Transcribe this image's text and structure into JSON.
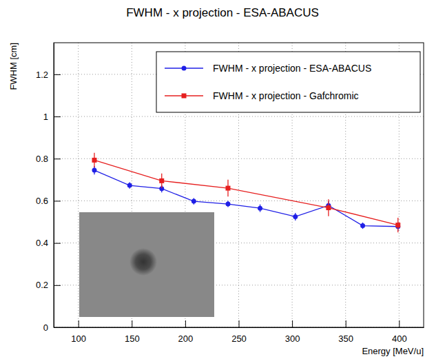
{
  "chart_data": {
    "type": "line",
    "title": "FWHM - x projection - ESA-ABACUS",
    "x_label": "Energy [MeV/u]",
    "y_label": "FWHM [cm]",
    "xlim": [
      77,
      423
    ],
    "ylim": [
      0,
      1.35
    ],
    "xticks": [
      100,
      150,
      200,
      250,
      300,
      350,
      400
    ],
    "yticks": [
      0,
      0.2,
      0.4,
      0.6,
      0.8,
      1,
      1.2
    ],
    "grid": true,
    "legend": "top-right",
    "series": [
      {
        "name": "FWHM - x projection - ESA-ABACUS",
        "color": "#1f1fe6",
        "marker": "circle",
        "line_style": "solid",
        "x": [
          115,
          148,
          178,
          208,
          240,
          270,
          303,
          334,
          366,
          399
        ],
        "values": [
          0.745,
          0.673,
          0.658,
          0.598,
          0.585,
          0.565,
          0.525,
          0.578,
          0.482,
          0.478
        ],
        "errors": [
          0.02,
          0.015,
          0.018,
          0.015,
          0.015,
          0.018,
          0.018,
          0.02,
          0.015,
          0.02
        ]
      },
      {
        "name": "FWHM - x projection - Gafchromic",
        "color": "#e61f1f",
        "marker": "square",
        "line_style": "solid",
        "x": [
          115,
          178,
          240,
          334,
          399
        ],
        "values": [
          0.793,
          0.695,
          0.66,
          0.567,
          0.485
        ],
        "errors": [
          0.035,
          0.035,
          0.04,
          0.04,
          0.035
        ]
      }
    ]
  }
}
